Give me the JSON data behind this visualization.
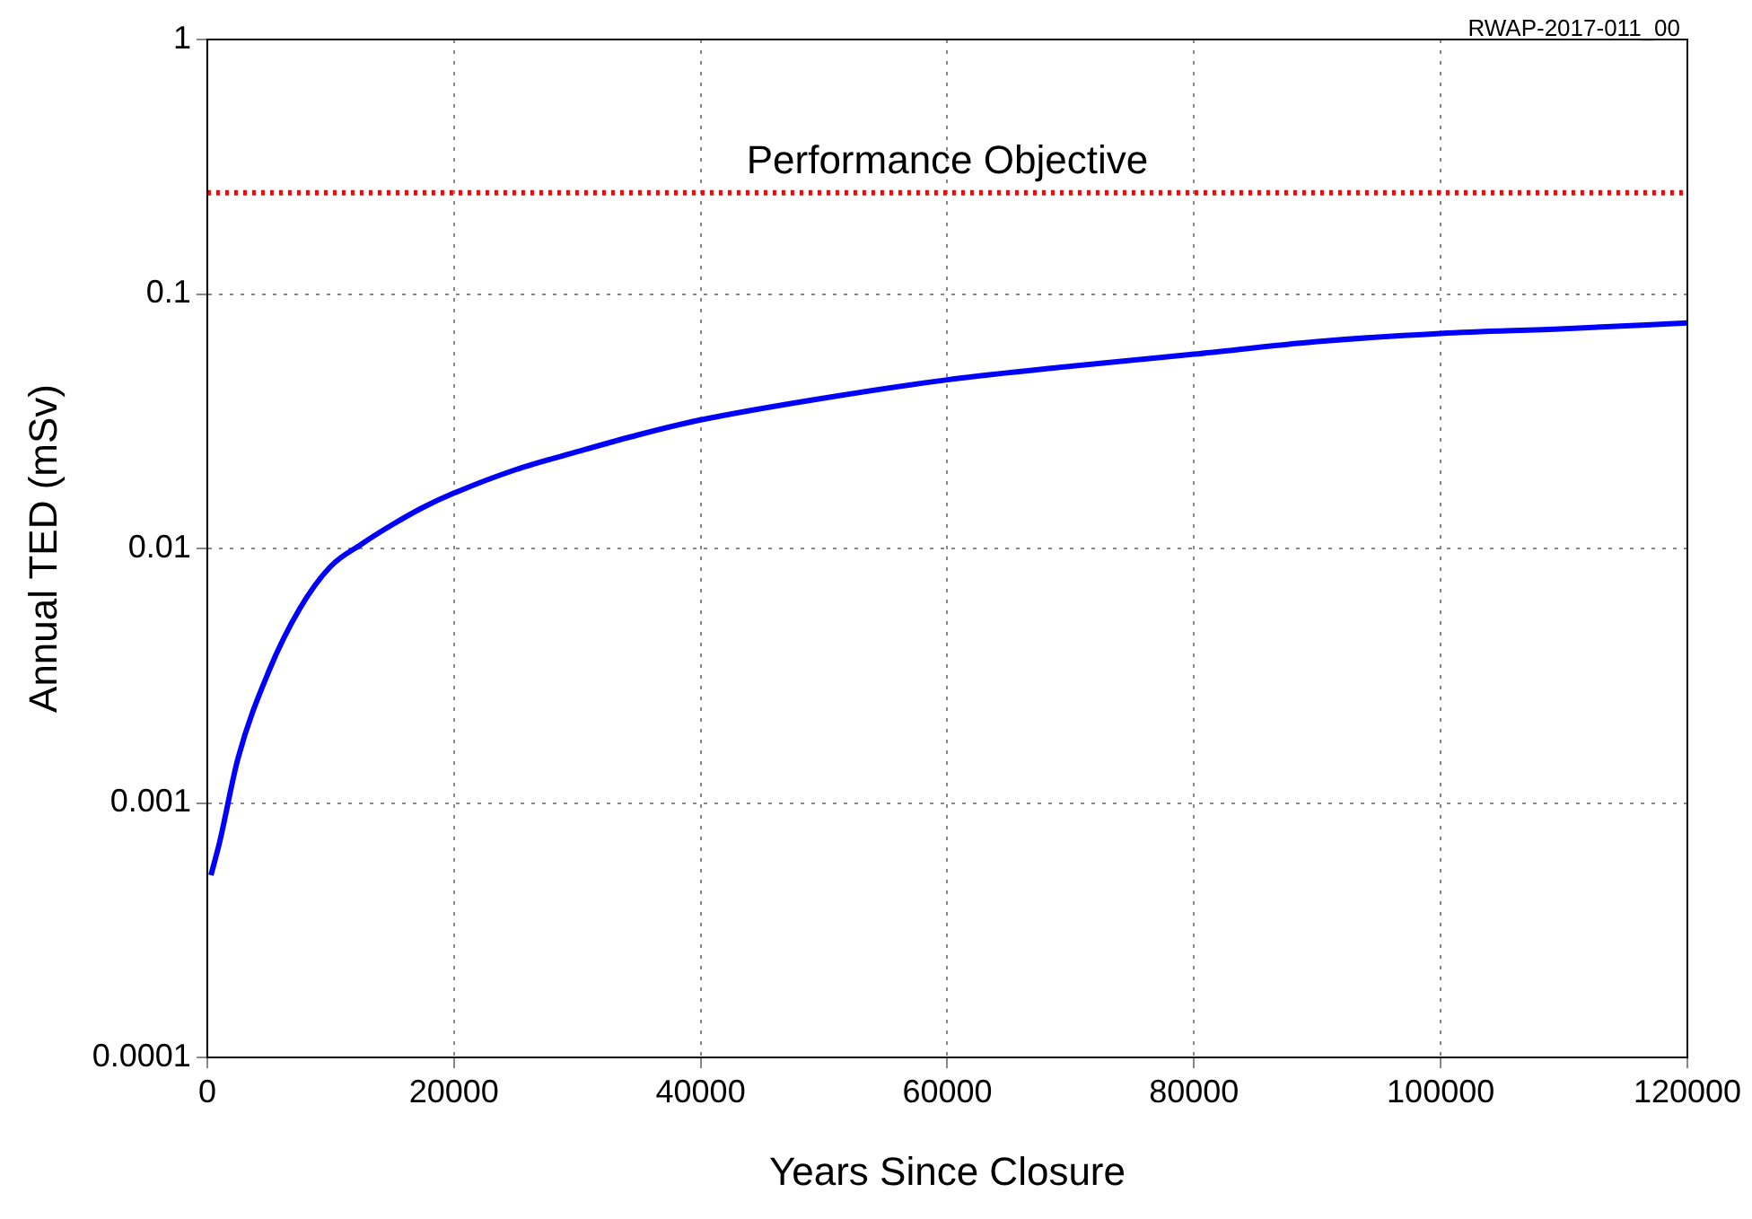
{
  "chart_data": {
    "type": "line",
    "xlabel": "Years Since Closure",
    "ylabel": "Annual TED (mSv)",
    "annotations": [
      "RWAP-2017-011_00"
    ],
    "x": [
      300,
      1000,
      2500,
      5000,
      7500,
      10000,
      12500,
      15000,
      17500,
      20000,
      25000,
      30000,
      35000,
      40000,
      50000,
      60000,
      70000,
      80000,
      90000,
      100000,
      110000,
      120000
    ],
    "series": [
      {
        "color": "#0000ff",
        "values": [
          0.00052,
          0.0007,
          0.0015,
          0.0033,
          0.0058,
          0.0085,
          0.0104,
          0.0124,
          0.0145,
          0.0165,
          0.0204,
          0.024,
          0.028,
          0.032,
          0.039,
          0.046,
          0.052,
          0.058,
          0.065,
          0.07,
          0.073,
          0.077
        ]
      }
    ],
    "xlim": [
      0,
      120000
    ],
    "xticks": [
      0,
      20000,
      40000,
      60000,
      80000,
      100000,
      120000
    ],
    "ylim": [
      0.0001,
      1
    ],
    "yticks": [
      0.0001,
      0.001,
      0.01,
      0.1,
      1
    ],
    "log": "y",
    "grid": true,
    "legend": false,
    "marker": "none",
    "line_style": "solid",
    "ref_lines": [
      {
        "axis": "y",
        "value": 0.25,
        "label": "Performance Objective",
        "color": "#ff0000",
        "line_style": "dotted"
      }
    ]
  }
}
